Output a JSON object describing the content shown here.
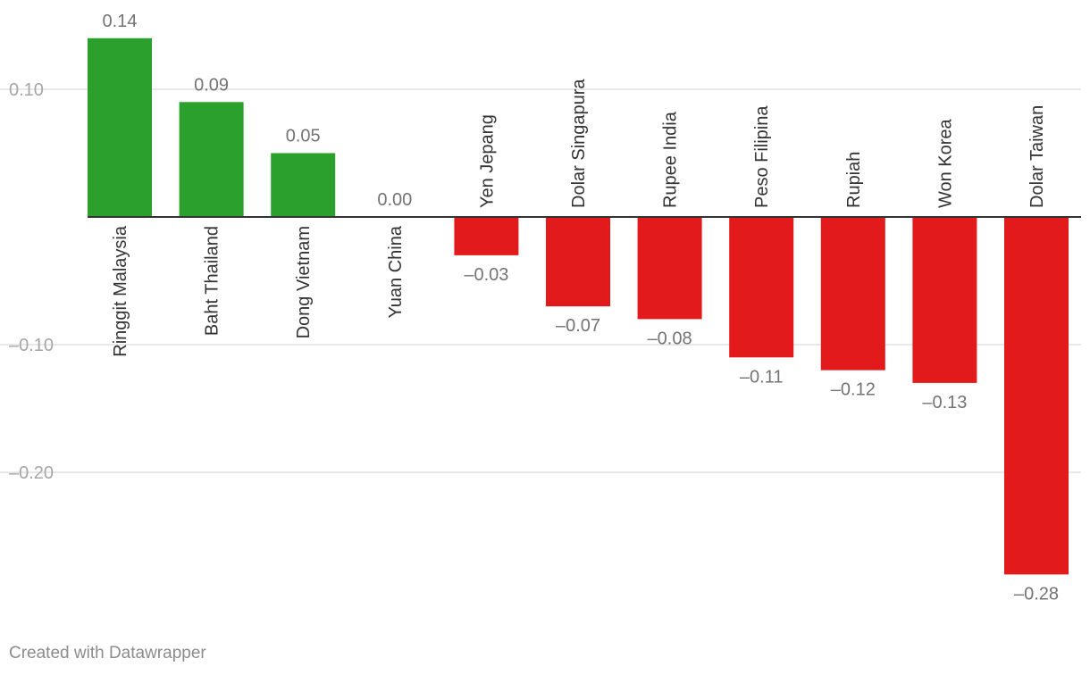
{
  "chart_data": {
    "type": "bar",
    "categories": [
      "Ringgit Malaysia",
      "Baht Thailand",
      "Dong Vietnam",
      "Yuan China",
      "Yen Jepang",
      "Dolar Singapura",
      "Rupee India",
      "Peso Filipina",
      "Rupiah",
      "Won Korea",
      "Dolar Taiwan"
    ],
    "values": [
      0.14,
      0.09,
      0.05,
      0.0,
      -0.03,
      -0.07,
      -0.08,
      -0.11,
      -0.12,
      -0.13,
      -0.28
    ],
    "value_labels": [
      "0.14",
      "0.09",
      "0.05",
      "0.00",
      "–0.03",
      "–0.07",
      "–0.08",
      "–0.11",
      "–0.12",
      "–0.13",
      "–0.28"
    ],
    "y_ticks": [
      0.1,
      -0.1,
      -0.2
    ],
    "y_tick_labels": [
      "0.10",
      "–0.10",
      "–0.20"
    ],
    "ylim": [
      -0.28,
      0.14
    ],
    "grid": true,
    "colors": {
      "positive": "#2ca02c",
      "negative": "#e31a1c",
      "grid": "#e0e0e0",
      "baseline": "#333333",
      "label": "#737373",
      "category": "#333333"
    }
  },
  "footer": {
    "credit": "Created with Datawrapper"
  }
}
